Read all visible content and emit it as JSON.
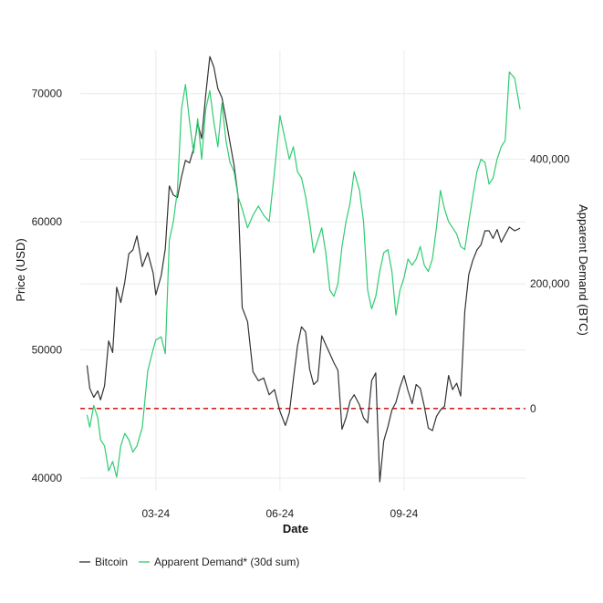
{
  "colors": {
    "bitcoin": "#333333",
    "demand": "#2ecc71",
    "zero_line": "#cc0000",
    "grid": "#ebebeb"
  },
  "chart_data": {
    "type": "line",
    "xlabel": "Date",
    "ylabel_left": "Price (USD)",
    "ylabel_right": "Apparent Demand (BTC)",
    "x_ticks": [
      {
        "label": "03-24",
        "date": "2024-03-01"
      },
      {
        "label": "06-24",
        "date": "2024-06-01"
      },
      {
        "label": "09-24",
        "date": "2024-09-01"
      }
    ],
    "y_left_ticks": [
      {
        "label": "40000",
        "value": 40000
      },
      {
        "label": "50000",
        "value": 50000
      },
      {
        "label": "60000",
        "value": 60000
      },
      {
        "label": "70000",
        "value": 70000
      }
    ],
    "y_right_ticks": [
      {
        "label": "0",
        "value": 0
      },
      {
        "label": "200,000",
        "value": 200000
      },
      {
        "label": "400,000",
        "value": 400000
      }
    ],
    "x_range": [
      "2024-01-05",
      "2024-11-30"
    ],
    "y_left_range": [
      39000,
      73400
    ],
    "y_right_range": [
      -132000,
      575000
    ],
    "zero_line": {
      "axis": "right",
      "value": 0,
      "style": "dashed"
    },
    "grid": true,
    "legend_position": "bottom-left",
    "series": [
      {
        "name": "Bitcoin",
        "axis": "left",
        "color_key": "bitcoin",
        "x": [
          "2024-01-10",
          "2024-01-12",
          "2024-01-15",
          "2024-01-18",
          "2024-01-20",
          "2024-01-23",
          "2024-01-26",
          "2024-01-29",
          "2024-02-01",
          "2024-02-04",
          "2024-02-07",
          "2024-02-10",
          "2024-02-13",
          "2024-02-16",
          "2024-02-20",
          "2024-02-24",
          "2024-02-28",
          "2024-03-01",
          "2024-03-05",
          "2024-03-08",
          "2024-03-11",
          "2024-03-14",
          "2024-03-17",
          "2024-03-20",
          "2024-03-23",
          "2024-03-26",
          "2024-03-29",
          "2024-04-01",
          "2024-04-04",
          "2024-04-07",
          "2024-04-10",
          "2024-04-13",
          "2024-04-16",
          "2024-04-19",
          "2024-04-22",
          "2024-04-25",
          "2024-04-28",
          "2024-05-01",
          "2024-05-04",
          "2024-05-08",
          "2024-05-12",
          "2024-05-16",
          "2024-05-20",
          "2024-05-24",
          "2024-05-28",
          "2024-06-01",
          "2024-06-05",
          "2024-06-08",
          "2024-06-11",
          "2024-06-14",
          "2024-06-17",
          "2024-06-20",
          "2024-06-23",
          "2024-06-26",
          "2024-06-29",
          "2024-07-02",
          "2024-07-05",
          "2024-07-08",
          "2024-07-11",
          "2024-07-14",
          "2024-07-17",
          "2024-07-20",
          "2024-07-23",
          "2024-07-26",
          "2024-07-30",
          "2024-08-02",
          "2024-08-05",
          "2024-08-08",
          "2024-08-11",
          "2024-08-14",
          "2024-08-17",
          "2024-08-20",
          "2024-08-23",
          "2024-08-26",
          "2024-08-29",
          "2024-09-01",
          "2024-09-04",
          "2024-09-07",
          "2024-09-10",
          "2024-09-13",
          "2024-09-16",
          "2024-09-19",
          "2024-09-22",
          "2024-09-25",
          "2024-09-28",
          "2024-10-01",
          "2024-10-04",
          "2024-10-07",
          "2024-10-10",
          "2024-10-13",
          "2024-10-16",
          "2024-10-19",
          "2024-10-22",
          "2024-10-25",
          "2024-10-28",
          "2024-10-31",
          "2024-11-03",
          "2024-11-06",
          "2024-11-09",
          "2024-11-12",
          "2024-11-15",
          "2024-11-18",
          "2024-11-22",
          "2024-11-26"
        ],
        "values": [
          48800,
          47000,
          46300,
          46800,
          46100,
          47200,
          50700,
          49800,
          54900,
          53700,
          55300,
          57500,
          57800,
          58900,
          56500,
          57600,
          56000,
          54300,
          55800,
          57900,
          62800,
          62100,
          61900,
          63500,
          64800,
          64600,
          65700,
          67700,
          66500,
          69900,
          72900,
          72100,
          70400,
          69700,
          68000,
          66200,
          64400,
          62000,
          53300,
          52200,
          48300,
          47600,
          47800,
          46500,
          46900,
          45200,
          44100,
          45100,
          47700,
          50300,
          51800,
          51400,
          48500,
          47300,
          47600,
          51100,
          50400,
          49700,
          49000,
          48400,
          43800,
          44700,
          46000,
          46500,
          45700,
          44700,
          44300,
          47600,
          48200,
          39700,
          42900,
          44000,
          45300,
          45900,
          47100,
          48000,
          46800,
          45800,
          47300,
          47000,
          45600,
          43900,
          43700,
          44800,
          45300,
          45600,
          48000,
          46900,
          47400,
          46400,
          53000,
          55900,
          57000,
          57800,
          58200,
          59300,
          59300,
          58700,
          59400,
          58400,
          59000,
          59600,
          59300,
          59500
        ]
      },
      {
        "name": "Apparent Demand* (30d sum)",
        "axis": "right",
        "color_key": "demand",
        "x": [
          "2024-01-10",
          "2024-01-12",
          "2024-01-15",
          "2024-01-18",
          "2024-01-20",
          "2024-01-23",
          "2024-01-26",
          "2024-01-29",
          "2024-02-01",
          "2024-02-04",
          "2024-02-07",
          "2024-02-10",
          "2024-02-13",
          "2024-02-16",
          "2024-02-20",
          "2024-02-24",
          "2024-02-28",
          "2024-03-01",
          "2024-03-05",
          "2024-03-08",
          "2024-03-11",
          "2024-03-14",
          "2024-03-17",
          "2024-03-20",
          "2024-03-23",
          "2024-03-26",
          "2024-03-29",
          "2024-04-01",
          "2024-04-04",
          "2024-04-07",
          "2024-04-10",
          "2024-04-13",
          "2024-04-16",
          "2024-04-19",
          "2024-04-22",
          "2024-04-25",
          "2024-04-28",
          "2024-05-01",
          "2024-05-04",
          "2024-05-08",
          "2024-05-12",
          "2024-05-16",
          "2024-05-20",
          "2024-05-24",
          "2024-05-28",
          "2024-06-01",
          "2024-06-05",
          "2024-06-08",
          "2024-06-11",
          "2024-06-14",
          "2024-06-17",
          "2024-06-20",
          "2024-06-23",
          "2024-06-26",
          "2024-06-29",
          "2024-07-02",
          "2024-07-05",
          "2024-07-08",
          "2024-07-11",
          "2024-07-14",
          "2024-07-17",
          "2024-07-20",
          "2024-07-23",
          "2024-07-26",
          "2024-07-30",
          "2024-08-02",
          "2024-08-05",
          "2024-08-08",
          "2024-08-11",
          "2024-08-14",
          "2024-08-17",
          "2024-08-20",
          "2024-08-23",
          "2024-08-26",
          "2024-08-29",
          "2024-09-01",
          "2024-09-04",
          "2024-09-07",
          "2024-09-10",
          "2024-09-13",
          "2024-09-16",
          "2024-09-19",
          "2024-09-22",
          "2024-09-25",
          "2024-09-28",
          "2024-10-01",
          "2024-10-04",
          "2024-10-07",
          "2024-10-10",
          "2024-10-13",
          "2024-10-16",
          "2024-10-19",
          "2024-10-22",
          "2024-10-25",
          "2024-10-28",
          "2024-10-31",
          "2024-11-03",
          "2024-11-06",
          "2024-11-09",
          "2024-11-12",
          "2024-11-15",
          "2024-11-18",
          "2024-11-22",
          "2024-11-26"
        ],
        "values": [
          -10000,
          -30000,
          5000,
          -15000,
          -50000,
          -60000,
          -100000,
          -85000,
          -110000,
          -60000,
          -40000,
          -50000,
          -70000,
          -60000,
          -30000,
          60000,
          95000,
          110000,
          115000,
          88000,
          270000,
          300000,
          350000,
          480000,
          520000,
          460000,
          410000,
          465000,
          400000,
          480000,
          510000,
          460000,
          420000,
          490000,
          430000,
          395000,
          380000,
          340000,
          320000,
          290000,
          310000,
          325000,
          310000,
          300000,
          380000,
          470000,
          430000,
          400000,
          420000,
          380000,
          370000,
          340000,
          300000,
          250000,
          270000,
          290000,
          250000,
          190000,
          180000,
          200000,
          260000,
          300000,
          330000,
          380000,
          350000,
          300000,
          190000,
          160000,
          180000,
          220000,
          250000,
          255000,
          220000,
          150000,
          190000,
          210000,
          240000,
          230000,
          240000,
          260000,
          230000,
          220000,
          240000,
          290000,
          350000,
          320000,
          300000,
          290000,
          280000,
          260000,
          255000,
          300000,
          340000,
          380000,
          400000,
          395000,
          360000,
          370000,
          400000,
          420000,
          430000,
          540000,
          530000,
          480000
        ]
      }
    ]
  },
  "legend": {
    "bitcoin_label": "Bitcoin",
    "demand_label": "Apparent Demand* (30d sum)"
  }
}
